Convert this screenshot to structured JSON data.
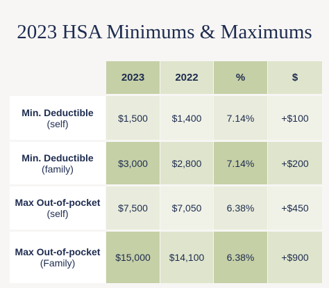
{
  "title": "2023 HSA Minimums & Maximums",
  "table": {
    "header": [
      "2023",
      "2022",
      "%",
      "$"
    ],
    "rows": [
      {
        "label": [
          "Min. Deductible",
          "(self)"
        ],
        "cells": [
          "$1,500",
          "$1,400",
          "7.14%",
          "+$100"
        ]
      },
      {
        "label": [
          "Min. Deductible",
          "(family)"
        ],
        "cells": [
          "$3,000",
          "$2,800",
          "7.14%",
          "+$200"
        ]
      },
      {
        "label": [
          "Max Out-of-pocket",
          "(self)"
        ],
        "cells": [
          "$7,500",
          "$7,050",
          "6.38%",
          "+$450"
        ]
      },
      {
        "label": [
          "Max Out-of-pocket",
          "(Family)"
        ],
        "cells": [
          "$15,000",
          "$14,100",
          "6.38%",
          "+$900"
        ]
      }
    ]
  }
}
